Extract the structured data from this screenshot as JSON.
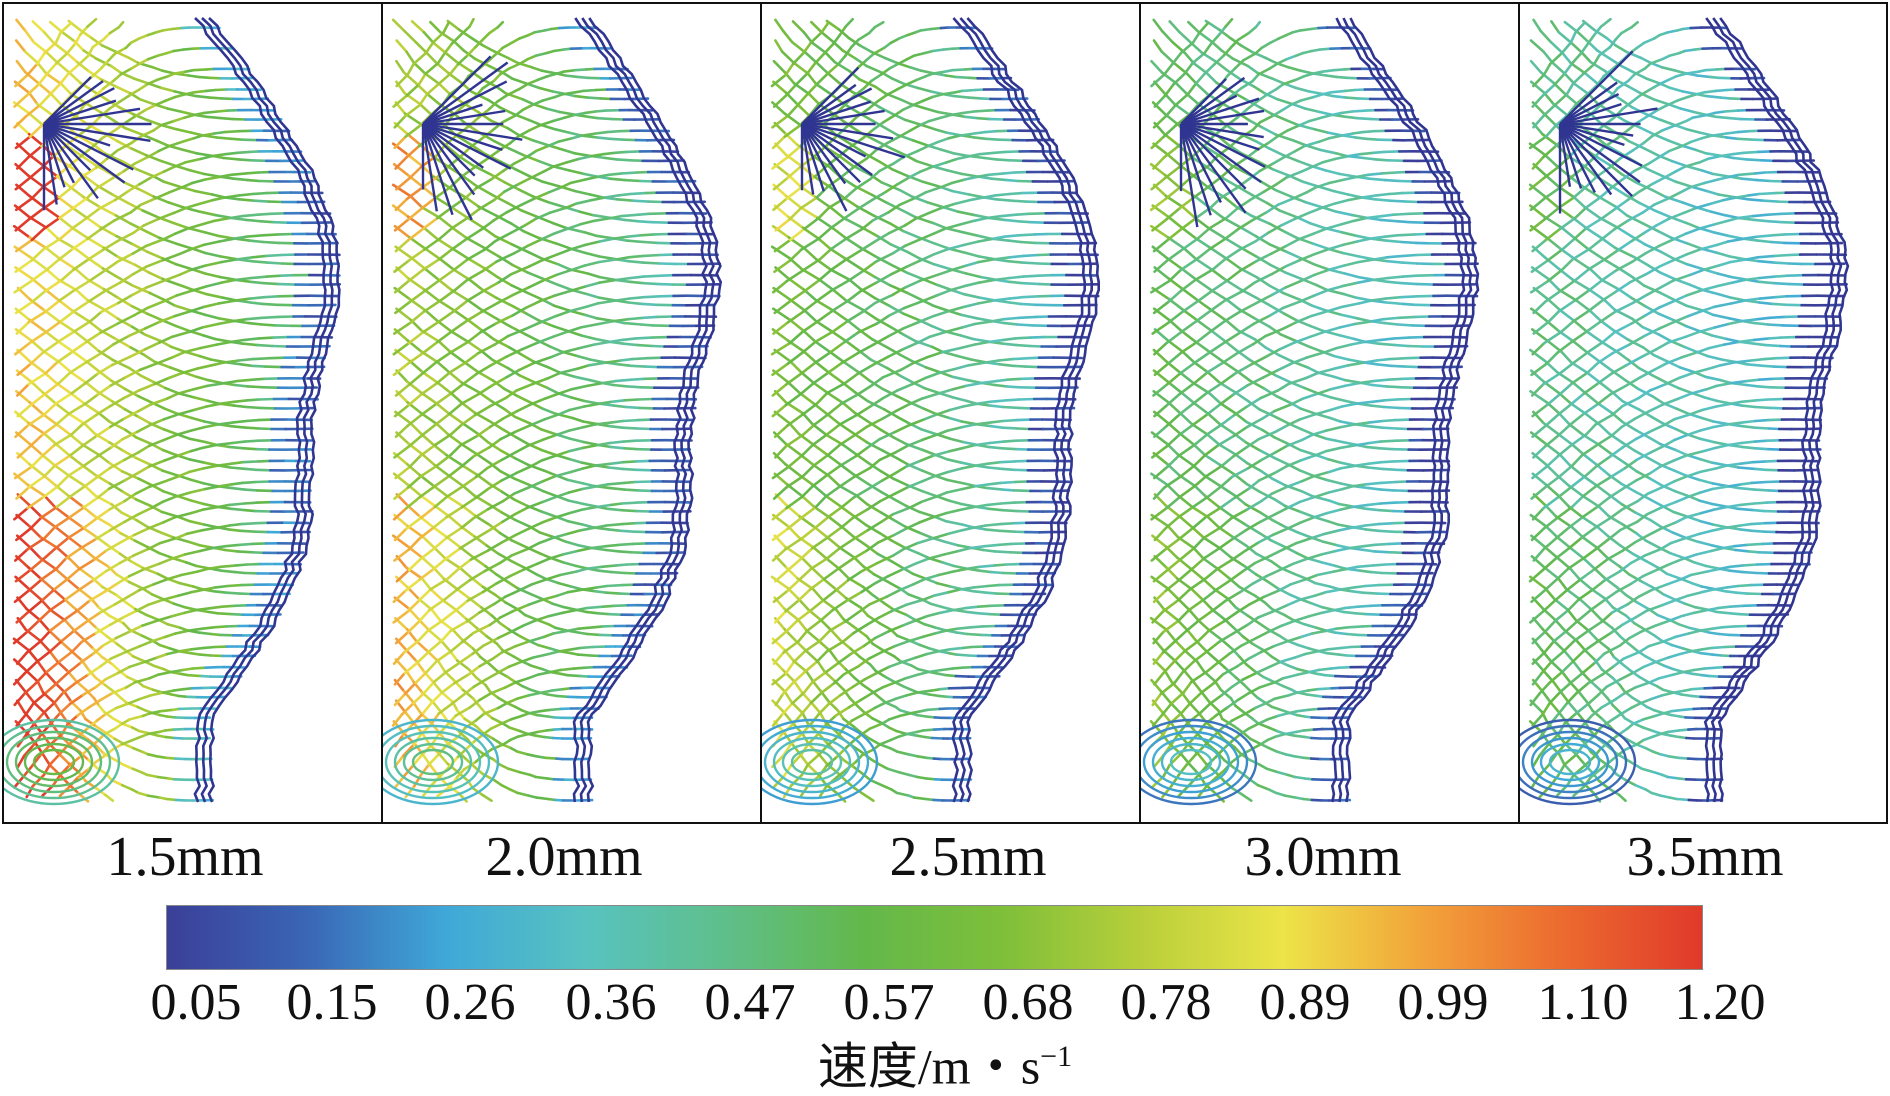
{
  "panels": [
    {
      "label": "1.5mm",
      "intensity": 0.62,
      "seed": 11
    },
    {
      "label": "2.0mm",
      "intensity": 0.46,
      "seed": 23
    },
    {
      "label": "2.5mm",
      "intensity": 0.36,
      "seed": 37
    },
    {
      "label": "3.0mm",
      "intensity": 0.27,
      "seed": 51
    },
    {
      "label": "3.5mm",
      "intensity": 0.2,
      "seed": 67
    }
  ],
  "colorbar": {
    "title_main": "速度/m・s",
    "title_sup": "−1",
    "ticks": [
      "0.05",
      "0.15",
      "0.26",
      "0.36",
      "0.47",
      "0.57",
      "0.68",
      "0.78",
      "0.89",
      "0.99",
      "1.10",
      "1.20"
    ],
    "range": [
      0.05,
      1.2
    ],
    "colors": [
      "#3b3f98",
      "#3a66b5",
      "#3fa8d8",
      "#58c2c0",
      "#5fbf8a",
      "#63b84a",
      "#7fbf3a",
      "#b9cf3a",
      "#ece448",
      "#f2a33a",
      "#ec6a2f",
      "#e03a2a"
    ]
  }
}
